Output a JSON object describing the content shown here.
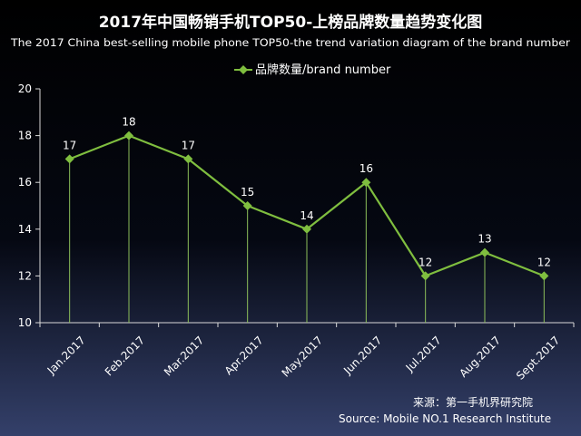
{
  "colors": {
    "line": "#7fbe3f",
    "background_top": "#000000",
    "background_bottom": "#34406a",
    "axis": "#d9d9d9",
    "drop_line": "#8cbf5a"
  },
  "legend": {
    "icon": "diamond-marker-icon",
    "placement": "top-center"
  },
  "source": {
    "line1": "来源：第一手机界研究院",
    "line2": "Source: Mobile NO.1 Research Institute"
  },
  "chart_data": {
    "type": "line",
    "title": "2017年中国畅销手机TOP50-上榜品牌数量趋势变化图",
    "subtitle": "The 2017 China best-selling mobile phone TOP50-the trend variation diagram of the brand number",
    "categories": [
      "Jan.2017",
      "Feb.2017",
      "Mar.2017",
      "Apr.2017",
      "May.2017",
      "Jun.2017",
      "Jul.2017",
      "Aug.2017",
      "Sept.2017"
    ],
    "series": [
      {
        "name": "品牌数量/brand number",
        "values": [
          17,
          18,
          17,
          15,
          14,
          16,
          12,
          13,
          12
        ]
      }
    ],
    "xlabel": "",
    "ylabel": "",
    "ylim": [
      10,
      20
    ],
    "yticks": [
      10,
      12,
      14,
      16,
      18,
      20
    ],
    "grid": false,
    "drop_lines": true,
    "data_labels": true
  }
}
